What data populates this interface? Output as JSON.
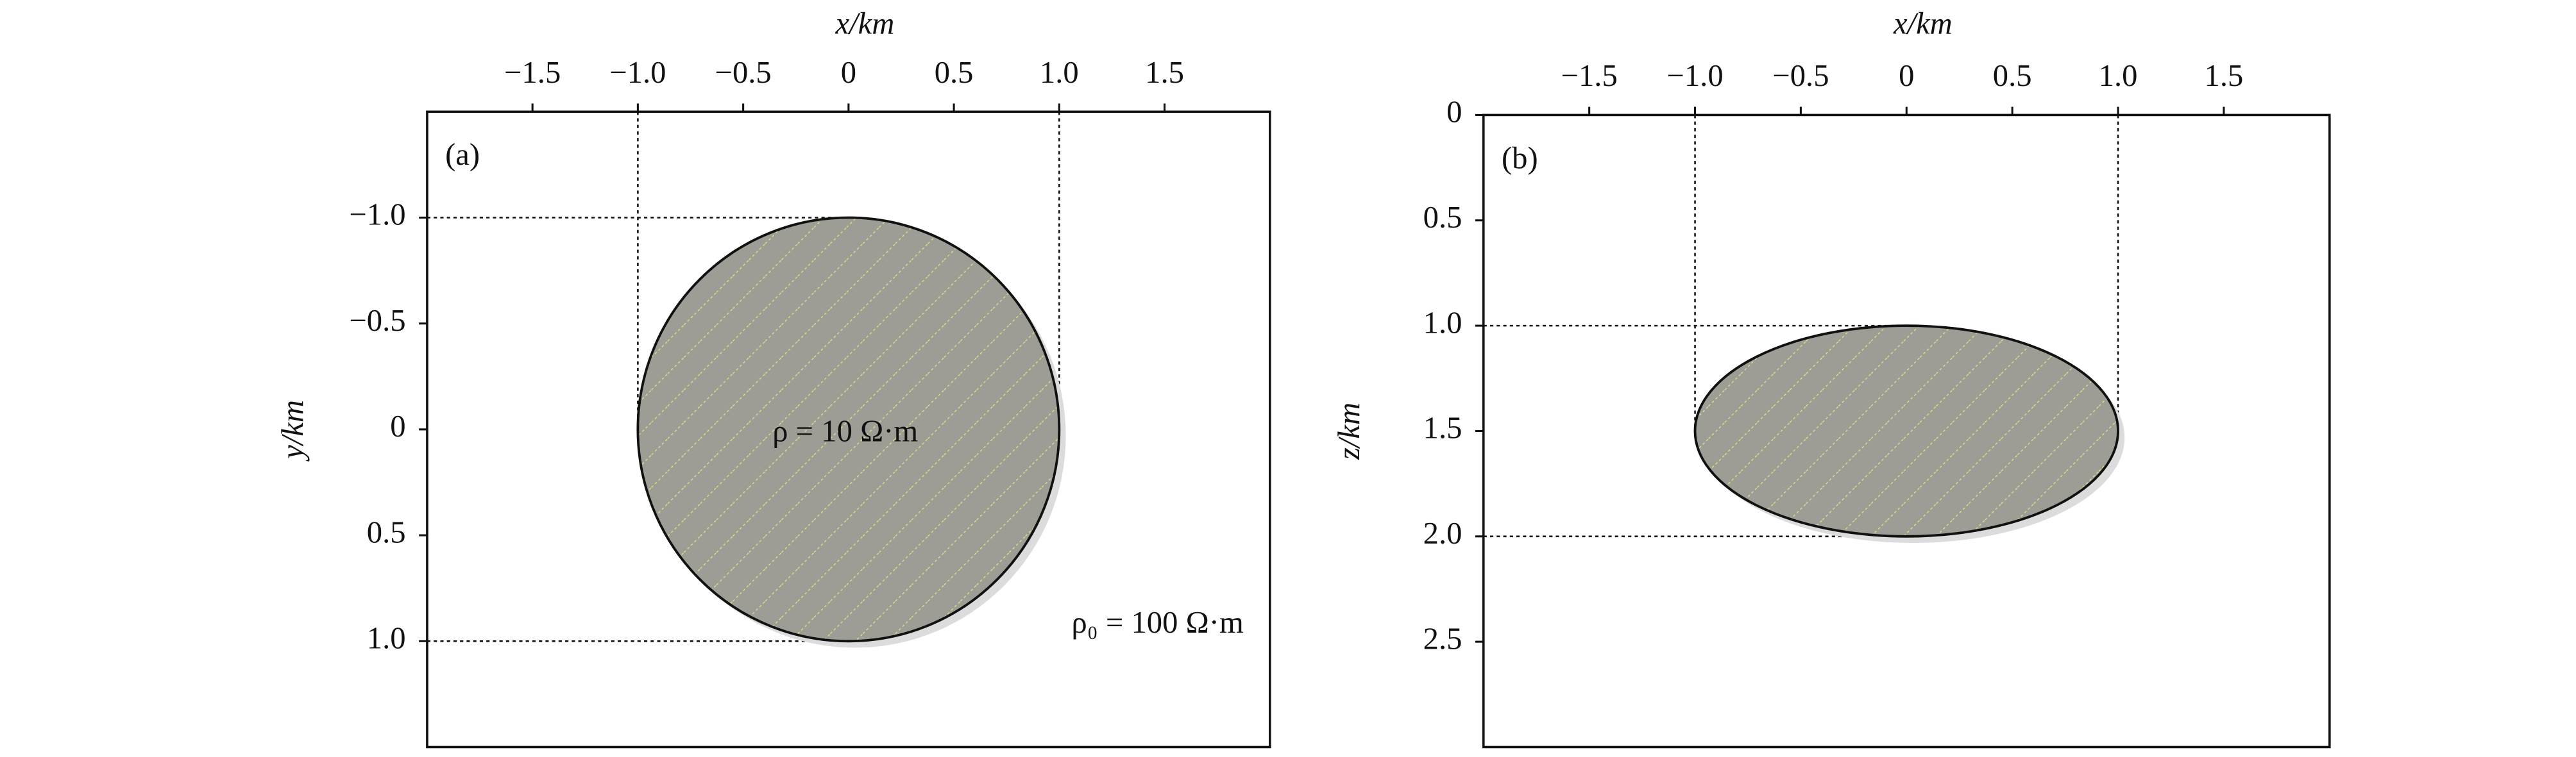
{
  "chart_data": [
    {
      "type": "ellipse",
      "panel_label": "(a)",
      "xlabel": "x/km",
      "ylabel": "y/km",
      "xlim": [
        -2,
        2
      ],
      "xticks": [
        {
          "value": -1.5,
          "label": "−1.5"
        },
        {
          "value": -1.0,
          "label": "−1.0"
        },
        {
          "value": -0.5,
          "label": "−0.5"
        },
        0,
        0.5,
        {
          "value": 1.0,
          "label": "1.0"
        },
        1.5
      ],
      "ylim": [
        -1.5,
        1.5
      ],
      "y_inverted": true,
      "yticks": [
        {
          "value": -1.0,
          "label": "−1.0"
        },
        {
          "value": -0.5,
          "label": "−0.5"
        },
        0,
        0.5,
        {
          "value": 1.0,
          "label": "1.0"
        }
      ],
      "shape": {
        "cx": 0,
        "cy": 0,
        "rx": 1,
        "ry": 1
      },
      "annotations": [
        "ρ = 10 Ω·m",
        "ρ₀ = 100 Ω·m"
      ]
    },
    {
      "type": "ellipse",
      "panel_label": "(b)",
      "xlabel": "x/km",
      "ylabel": "z/km",
      "xlim": [
        -2,
        2
      ],
      "xticks": [
        {
          "value": -1.5,
          "label": "−1.5"
        },
        {
          "value": -1.0,
          "label": "−1.0"
        },
        {
          "value": -0.5,
          "label": "−0.5"
        },
        0,
        0.5,
        {
          "value": 1.0,
          "label": "1.0"
        },
        1.5
      ],
      "ylim": [
        0,
        3
      ],
      "y_inverted": true,
      "yticks": [
        0,
        0.5,
        {
          "value": 1.0,
          "label": "1.0"
        },
        1.5,
        {
          "value": 2.0,
          "label": "2.0"
        },
        2.5
      ],
      "shape": {
        "cx": 0,
        "cy": 1.5,
        "rx": 1,
        "ry": 0.5
      },
      "annotations": []
    }
  ]
}
